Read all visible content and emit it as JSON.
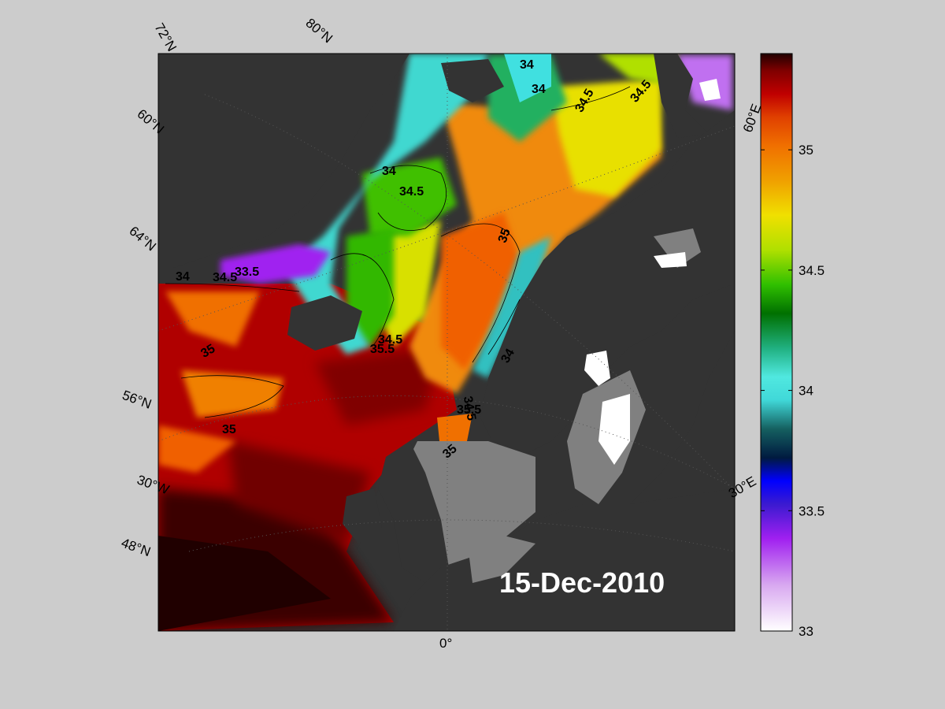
{
  "map": {
    "date_stamp": "15-Dec-2010",
    "graticule_labels": {
      "lat_72": "72°N",
      "lat_80": "80°N",
      "lat_60": "60°N",
      "lat_64": "64°N",
      "lat_56": "56°N",
      "lat_48": "48°N",
      "lon_60e": "60°E",
      "lon_30e": "30°E",
      "lon_30w": "30°W",
      "lon_0": "0°"
    },
    "contour_labels": [
      "34",
      "34",
      "34.5",
      "34.5",
      "34",
      "34.5",
      "35",
      "34",
      "34.5",
      "33.5",
      "35",
      "35.5",
      "34.5",
      "35",
      "34",
      "34.5",
      "35.5",
      "35",
      "35"
    ],
    "colors": {
      "land_dark": "#333333",
      "land_gray": "#808080",
      "background": "#cccccc"
    }
  },
  "colorbar": {
    "min": 33,
    "max": 35.4,
    "ticks": [
      "33",
      "33.5",
      "34",
      "34.5",
      "35"
    ],
    "tick_values": [
      33,
      33.5,
      34,
      34.5,
      35
    ],
    "colormap": [
      "#ffffff",
      "#d8a8f0",
      "#a020f0",
      "#3a1ad0",
      "#0000ff",
      "#001a40",
      "#156060",
      "#40d8d8",
      "#50e8e0",
      "#20b080",
      "#007000",
      "#30c000",
      "#b0e000",
      "#f0e000",
      "#f0a000",
      "#f07000",
      "#e04000",
      "#c00000",
      "#800000",
      "#200000"
    ]
  }
}
